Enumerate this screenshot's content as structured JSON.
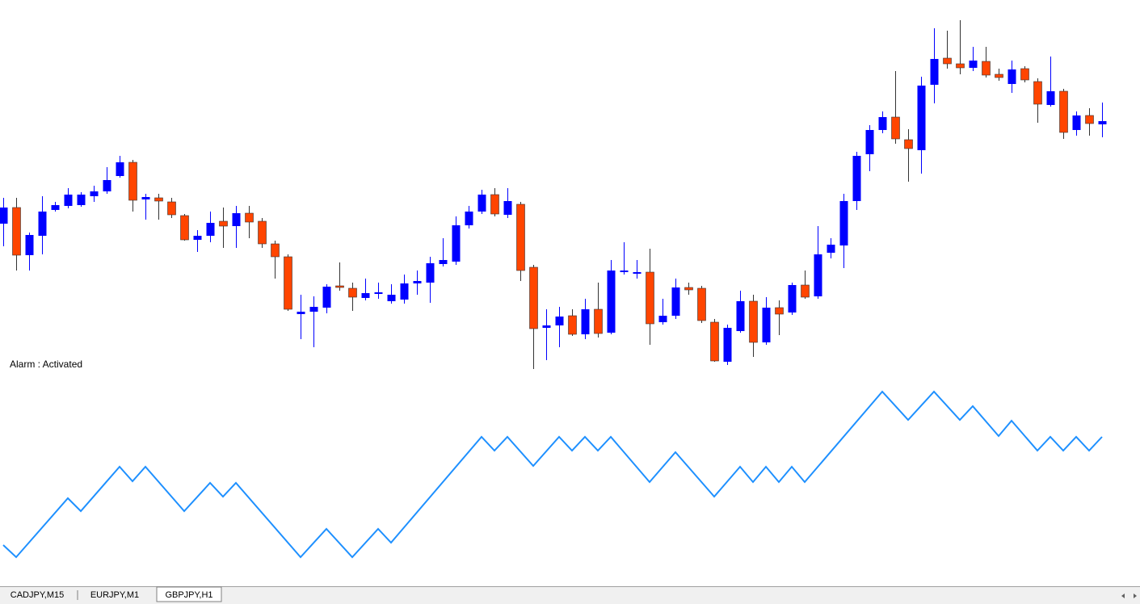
{
  "chart_data": [
    {
      "type": "candlestick",
      "annotation": "Alarm : Activated",
      "up_color": "#0000ff",
      "down_color": "#ff4500",
      "xlim": [
        0,
        85
      ],
      "ylim": [
        0,
        480
      ],
      "open": [
        203,
        223,
        164,
        188,
        220,
        225,
        226,
        237,
        243,
        262,
        279,
        233,
        235,
        230,
        213,
        183,
        188,
        206,
        200,
        216,
        206,
        178,
        162,
        91,
        94,
        99,
        126,
        123,
        111,
        116,
        107,
        109,
        129,
        130,
        153,
        156,
        201,
        218,
        239,
        214,
        227,
        149,
        74,
        77,
        89,
        66,
        97,
        68,
        143,
        141,
        143,
        81,
        89,
        124,
        123,
        81,
        32,
        70,
        107,
        56,
        99,
        93,
        127,
        113,
        167,
        176,
        231,
        289,
        319,
        335,
        307,
        294,
        375,
        408,
        401,
        396,
        404,
        388,
        376,
        395,
        379,
        350,
        367,
        319,
        337,
        326
      ],
      "high": [
        235,
        235,
        192,
        237,
        230,
        247,
        242,
        250,
        273,
        287,
        282,
        240,
        240,
        235,
        215,
        195,
        218,
        223,
        225,
        225,
        210,
        182,
        165,
        115,
        113,
        128,
        155,
        130,
        135,
        130,
        128,
        140,
        145,
        162,
        185,
        212,
        225,
        245,
        247,
        247,
        230,
        152,
        97,
        100,
        97,
        110,
        130,
        158,
        180,
        158,
        172,
        110,
        135,
        130,
        126,
        85,
        78,
        120,
        115,
        112,
        108,
        130,
        145,
        200,
        185,
        240,
        292,
        325,
        342,
        392,
        320,
        385,
        445,
        442,
        455,
        422,
        422,
        395,
        405,
        398,
        383,
        410,
        370,
        342,
        346,
        353
      ],
      "low": [
        175,
        145,
        145,
        165,
        218,
        222,
        224,
        230,
        240,
        260,
        218,
        208,
        208,
        210,
        182,
        168,
        180,
        173,
        173,
        185,
        173,
        135,
        95,
        60,
        50,
        92,
        120,
        95,
        108,
        110,
        104,
        104,
        115,
        105,
        150,
        152,
        197,
        215,
        212,
        210,
        132,
        23,
        34,
        50,
        64,
        60,
        62,
        66,
        140,
        135,
        53,
        78,
        85,
        115,
        80,
        32,
        28,
        68,
        38,
        53,
        65,
        90,
        110,
        110,
        160,
        148,
        220,
        268,
        315,
        302,
        255,
        265,
        352,
        395,
        388,
        392,
        384,
        380,
        365,
        378,
        328,
        348,
        308,
        312,
        312,
        310
      ],
      "close": [
        223,
        164,
        189,
        218,
        226,
        239,
        239,
        243,
        257,
        279,
        232,
        236,
        231,
        214,
        183,
        188,
        204,
        200,
        216,
        205,
        178,
        162,
        97,
        94,
        100,
        125,
        124,
        112,
        117,
        118,
        115,
        129,
        132,
        154,
        158,
        201,
        218,
        239,
        215,
        231,
        145,
        73,
        77,
        88,
        66,
        97,
        67,
        145,
        145,
        143,
        79,
        89,
        124,
        121,
        83,
        33,
        74,
        107,
        56,
        99,
        91,
        127,
        112,
        165,
        177,
        231,
        287,
        319,
        335,
        308,
        296,
        374,
        407,
        401,
        396,
        405,
        387,
        384,
        394,
        381,
        351,
        367,
        316,
        337,
        327,
        330
      ]
    },
    {
      "type": "line",
      "color": "#1e90ff",
      "xlim": [
        0,
        85
      ],
      "ylim": [
        0,
        250
      ],
      "x": [
        0,
        1,
        5,
        6,
        9,
        10,
        11,
        14,
        16,
        17,
        18,
        23,
        25,
        27,
        29,
        30,
        37,
        38,
        39,
        41,
        43,
        44,
        45,
        46,
        47,
        50,
        52,
        55,
        57,
        58,
        59,
        60,
        61,
        62,
        68,
        70,
        72,
        74,
        75,
        77,
        78,
        80,
        81,
        82,
        83,
        84,
        85
      ],
      "values": [
        45,
        30,
        103,
        87,
        142,
        124,
        142,
        87,
        122,
        105,
        122,
        30,
        65,
        30,
        65,
        48,
        179,
        162,
        179,
        143,
        179,
        162,
        179,
        162,
        179,
        123,
        160,
        105,
        142,
        123,
        142,
        123,
        142,
        123,
        235,
        200,
        235,
        200,
        217,
        180,
        199,
        162,
        179,
        162,
        179,
        162,
        179
      ]
    }
  ],
  "tabs": [
    "CADJPY,M15",
    "EURJPY,M1",
    "GBPJPY,H1"
  ],
  "active_tab": 2
}
